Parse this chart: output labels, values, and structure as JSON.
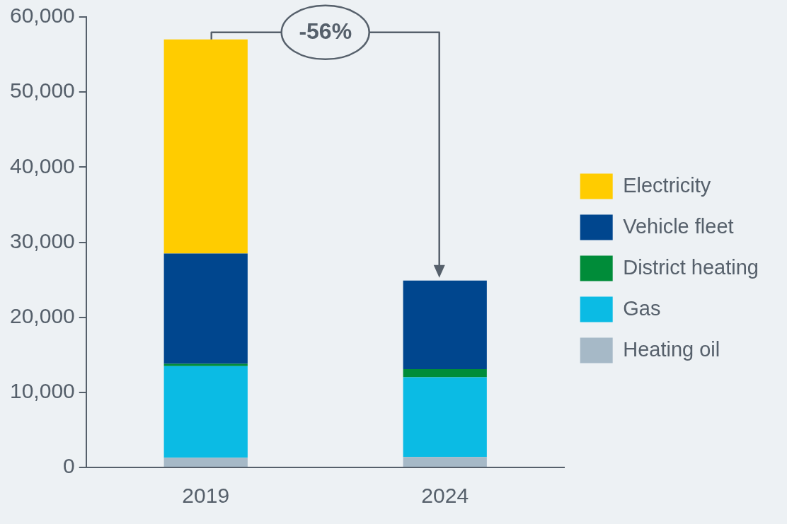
{
  "chart_data": {
    "type": "bar",
    "stacked": true,
    "categories": [
      "2019",
      "2024"
    ],
    "series": [
      {
        "name": "Heating oil",
        "color": "#a6b9c7",
        "values": [
          1300,
          1400
        ]
      },
      {
        "name": "Gas",
        "color": "#0bbbe4",
        "values": [
          12200,
          10600
        ]
      },
      {
        "name": "District heating",
        "color": "#008c39",
        "values": [
          300,
          1100
        ]
      },
      {
        "name": "Vehicle fleet",
        "color": "#00468e",
        "values": [
          14700,
          11800
        ]
      },
      {
        "name": "Electricity",
        "color": "#ffcc00",
        "values": [
          28500,
          0
        ]
      }
    ],
    "ylim": [
      0,
      60000
    ],
    "yticks": [
      0,
      {
        "value": 10000,
        "label": "10,000"
      },
      {
        "value": 20000,
        "label": "20,000"
      },
      {
        "value": 30000,
        "label": "30,000"
      },
      {
        "value": 40000,
        "label": "40,000"
      },
      {
        "value": 50000,
        "label": "50,000"
      },
      {
        "value": 60000,
        "label": "60,000"
      }
    ],
    "grid": false,
    "legend": "right",
    "annotations": [
      "-56%"
    ]
  }
}
